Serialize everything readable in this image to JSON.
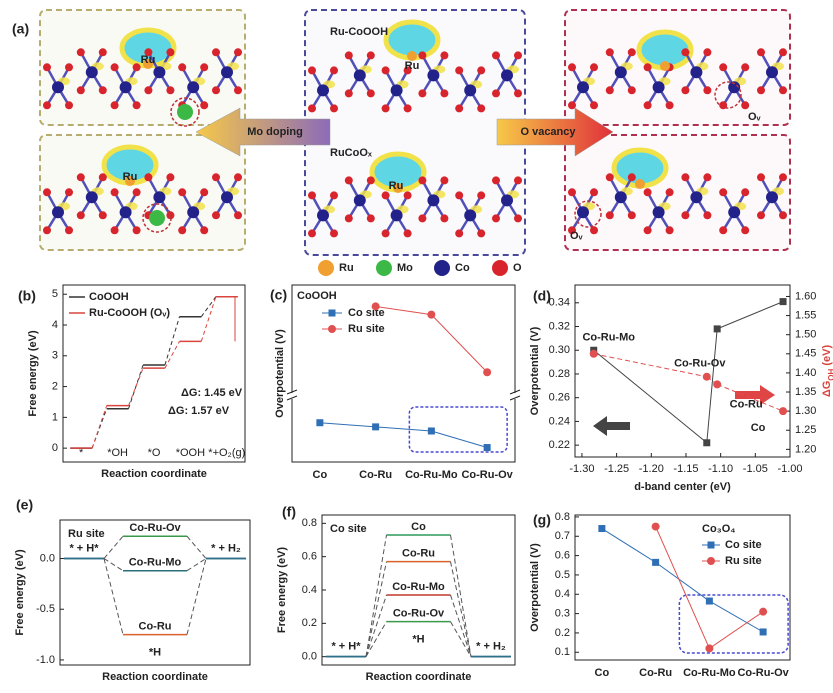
{
  "figure_a": {
    "panel": "(a)",
    "titles": [
      "Ru-CoOOH",
      "RuCoOₓ"
    ],
    "ru_labels": [
      "Ru",
      "Ru",
      "Ru",
      "Ru"
    ],
    "vacancy_labels": [
      "Oᵥ",
      "Oᵥ"
    ],
    "arrows": [
      "Mo doping",
      "O vacancy"
    ],
    "legend": [
      {
        "name": "Ru",
        "color": "#f0a030"
      },
      {
        "name": "Mo",
        "color": "#3cb846"
      },
      {
        "name": "Co",
        "color": "#22228a"
      },
      {
        "name": "O",
        "color": "#d8242c"
      }
    ]
  },
  "chart_data": [
    {
      "type": "energy_profile",
      "panel": "(b)",
      "xlabel": "Reaction coordinate",
      "ylabel": "Free energy (eV)",
      "categories": [
        "*",
        "*OH",
        "*O",
        "*OOH",
        "*+O₂(g)"
      ],
      "series": [
        {
          "name": "CoOOH",
          "color": "#333333",
          "values": [
            0,
            1.28,
            2.7,
            4.27,
            4.92
          ]
        },
        {
          "name": "Ru-CoOOH (Oᵥ)",
          "color": "#d9443f",
          "values": [
            0,
            1.38,
            2.6,
            3.47,
            4.92
          ]
        }
      ],
      "annotations": [
        {
          "text": "ΔG: 1.45 eV",
          "color": "#d9443f"
        },
        {
          "text": "ΔG: 1.57 eV",
          "color": "#333333"
        }
      ],
      "ylim": [
        -0.45,
        5.3
      ],
      "yticks": [
        0,
        1,
        2,
        3,
        4,
        5
      ]
    },
    {
      "type": "line_broken",
      "panel": "(c)",
      "title": "CoOOH",
      "ylabel": "Overpotential (V)",
      "categories": [
        "Co",
        "Co-Ru",
        "Co-Ru-Mo",
        "Co-Ru-Ov"
      ],
      "series": [
        {
          "name": "Co site",
          "color": "#2f6fb5",
          "marker": "square",
          "values": [
            0.34,
            0.32,
            0.3,
            0.22
          ]
        },
        {
          "name": "Ru site",
          "color": "#e05050",
          "marker": "circle",
          "values": [
            null,
            1.12,
            1.07,
            0.72
          ]
        }
      ],
      "ylim": [
        [
          0.15,
          0.45
        ],
        [
          0.6,
          1.25
        ]
      ]
    },
    {
      "type": "line",
      "panel": "(d)",
      "xlabel": "d-band center (eV)",
      "ylabel": "Overpotential (V)",
      "y2label": [
        "ΔG",
        "OH",
        " (eV)"
      ],
      "x": [
        -1.283,
        -1.12,
        -1.105,
        -1.01
      ],
      "point_labels": [
        "Co-Ru-Mo",
        "Co-Ru-Ov",
        "Co-Ru",
        "Co"
      ],
      "series": [
        {
          "color": "#444444",
          "marker": "square",
          "line_style": "solid",
          "values": [
            0.3,
            0.222,
            0.318,
            0.341
          ]
        },
        {
          "color": "#e05050",
          "marker": "circle",
          "line_style": "dashed",
          "axis": "y2",
          "values": [
            1.45,
            1.39,
            1.37,
            1.3
          ]
        }
      ],
      "xlim": [
        -1.31,
        -1.0
      ],
      "xticks": [
        {
          "value": -1.3,
          "label": "-1.30"
        },
        -1.25,
        {
          "value": -1.2,
          "label": "-1.20"
        },
        -1.15,
        {
          "value": -1.1,
          "label": "-1.10"
        },
        -1.05,
        {
          "value": -1.0,
          "label": "-1.00"
        }
      ],
      "ylim": [
        0.21,
        0.355
      ],
      "yticks": [
        0.22,
        0.24,
        0.26,
        0.28,
        {
          "value": 0.3,
          "label": "0.30"
        },
        0.32,
        0.34
      ],
      "y2lim": [
        1.18,
        1.63
      ],
      "y2ticks": [
        {
          "value": 1.2,
          "label": "1.20"
        },
        1.25,
        {
          "value": 1.3,
          "label": "1.30"
        },
        1.35,
        {
          "value": 1.4,
          "label": "1.40"
        },
        1.45,
        {
          "value": 1.5,
          "label": "1.50"
        },
        1.55,
        {
          "value": 1.6,
          "label": "1.60"
        }
      ]
    },
    {
      "type": "her_profile",
      "panel": "(e)",
      "title": "Ru site",
      "xlabel": "Reaction coordinate",
      "ylabel": "Free energy (eV)",
      "states": [
        "* + H*",
        "*H",
        "* + H₂"
      ],
      "series": [
        {
          "name": "Co-Ru-Ov",
          "color": "#3a9a4a",
          "values": [
            0,
            0.22,
            0
          ]
        },
        {
          "name": "Co-Ru-Mo",
          "color": "#2a6f7a",
          "values": [
            0,
            -0.12,
            0
          ]
        },
        {
          "name": "Co-Ru",
          "color": "#d9622b",
          "values": [
            0,
            -0.75,
            0
          ]
        }
      ],
      "ylim": [
        -1.05,
        0.38
      ],
      "yticks": [
        {
          "value": -1.0,
          "label": "-1.0"
        },
        -0.5,
        {
          "value": 0,
          "label": "0.0"
        }
      ]
    },
    {
      "type": "her_profile",
      "panel": "(f)",
      "title": "Co site",
      "xlabel": "Reaction coordinate",
      "ylabel": "Free energy (eV)",
      "states": [
        "* + H*",
        "*H",
        "* + H₂"
      ],
      "series": [
        {
          "name": "Co",
          "color": "#2f9a5a",
          "values": [
            0,
            0.73,
            0
          ]
        },
        {
          "name": "Co-Ru",
          "color": "#d9622b",
          "values": [
            0,
            0.57,
            0
          ]
        },
        {
          "name": "Co-Ru-Mo",
          "color": "#c0392b",
          "values": [
            0,
            0.37,
            0
          ]
        },
        {
          "name": "Co-Ru-Ov",
          "color": "#3a9a4a",
          "values": [
            0,
            0.21,
            0
          ]
        }
      ],
      "ylim": [
        -0.05,
        0.85
      ],
      "yticks": [
        {
          "value": 0,
          "label": "0.0"
        },
        0.2,
        0.4,
        0.6,
        0.8
      ]
    },
    {
      "type": "line",
      "panel": "(g)",
      "title": "Co₃O₄",
      "ylabel": "Overpotential (V)",
      "categories": [
        "Co",
        "Co-Ru",
        "Co-Ru-Mo",
        "Co-Ru-Ov"
      ],
      "series": [
        {
          "name": "Co site",
          "color": "#2f6fb5",
          "marker": "square",
          "line_style": "solid",
          "values": [
            0.74,
            0.565,
            0.365,
            0.205
          ]
        },
        {
          "name": "Ru site",
          "color": "#e05050",
          "marker": "circle",
          "line_style": "solid",
          "values": [
            null,
            0.75,
            0.12,
            0.31
          ]
        }
      ],
      "ylim": [
        0.06,
        0.81
      ],
      "yticks": [
        0.1,
        0.2,
        0.3,
        0.4,
        0.5,
        0.6,
        0.7,
        0.8
      ]
    }
  ]
}
